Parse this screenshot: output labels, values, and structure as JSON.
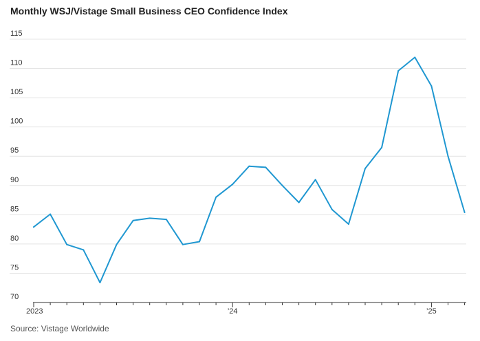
{
  "chart_data": {
    "type": "line",
    "title": "Monthly WSJ/Vistage Small Business CEO Confidence Index",
    "xlabel": "",
    "ylabel": "",
    "ylim": [
      70,
      115
    ],
    "yticks": [
      70,
      75,
      80,
      85,
      90,
      95,
      100,
      105,
      110,
      115
    ],
    "ytick_labels": [
      "70",
      "75",
      "80",
      "85",
      "90",
      "95",
      "100",
      "105",
      "110",
      "115"
    ],
    "x_months": [
      "2023-01",
      "2023-02",
      "2023-03",
      "2023-04",
      "2023-05",
      "2023-06",
      "2023-07",
      "2023-08",
      "2023-09",
      "2023-10",
      "2023-11",
      "2023-12",
      "2024-01",
      "2024-02",
      "2024-03",
      "2024-04",
      "2024-05",
      "2024-06",
      "2024-07",
      "2024-08",
      "2024-09",
      "2024-10",
      "2024-11",
      "2024-12",
      "2025-01",
      "2025-02",
      "2025-03"
    ],
    "xtick_labels": [
      {
        "month_index": 0,
        "label": "2023"
      },
      {
        "month_index": 12,
        "label": "’24"
      },
      {
        "month_index": 24,
        "label": "’25"
      }
    ],
    "series": [
      {
        "name": "CEO Confidence Index",
        "color": "#1f97d1",
        "values": [
          82.9,
          85.1,
          79.9,
          79.0,
          73.4,
          79.9,
          84.0,
          84.4,
          84.2,
          79.9,
          80.4,
          88.0,
          90.2,
          93.3,
          93.1,
          90.0,
          87.1,
          91.0,
          85.9,
          83.4,
          92.9,
          96.5,
          109.6,
          111.9,
          107.0,
          95.0,
          85.4
        ]
      }
    ],
    "grid": true,
    "source": "Source: Vistage Worldwide"
  },
  "colors": {
    "line": "#1f97d1",
    "grid": "#e4e4e4",
    "axis": "#333333"
  }
}
